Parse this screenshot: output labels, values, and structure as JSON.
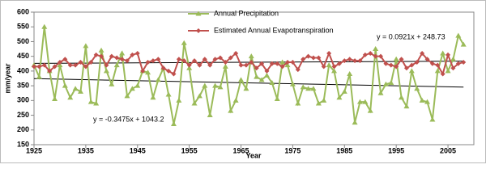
{
  "chart_data": {
    "type": "line",
    "x": [
      1925,
      1926,
      1927,
      1928,
      1929,
      1930,
      1931,
      1932,
      1933,
      1934,
      1935,
      1936,
      1937,
      1938,
      1939,
      1940,
      1941,
      1942,
      1943,
      1944,
      1945,
      1946,
      1947,
      1948,
      1949,
      1950,
      1951,
      1952,
      1953,
      1954,
      1955,
      1956,
      1957,
      1958,
      1959,
      1960,
      1961,
      1962,
      1963,
      1964,
      1965,
      1966,
      1967,
      1968,
      1969,
      1970,
      1971,
      1972,
      1973,
      1974,
      1975,
      1976,
      1977,
      1978,
      1979,
      1980,
      1981,
      1982,
      1983,
      1984,
      1985,
      1986,
      1987,
      1988,
      1989,
      1990,
      1991,
      1992,
      1993,
      1994,
      1995,
      1996,
      1997,
      1998,
      1999,
      2000,
      2001,
      2002,
      2003,
      2004,
      2005,
      2006,
      2007,
      2008
    ],
    "series": [
      {
        "name": "Annual Precipitation",
        "color": "#9bbb59",
        "marker": "triangle",
        "values": [
          420,
          380,
          550,
          400,
          305,
          420,
          350,
          310,
          340,
          330,
          485,
          295,
          290,
          470,
          400,
          355,
          420,
          460,
          315,
          340,
          350,
          400,
          395,
          310,
          370,
          410,
          320,
          220,
          300,
          495,
          410,
          290,
          315,
          350,
          250,
          350,
          345,
          415,
          265,
          300,
          370,
          340,
          450,
          380,
          370,
          385,
          360,
          305,
          430,
          420,
          355,
          290,
          345,
          340,
          340,
          290,
          300,
          420,
          400,
          310,
          330,
          390,
          225,
          295,
          295,
          265,
          475,
          325,
          355,
          360,
          440,
          310,
          280,
          400,
          340,
          300,
          295,
          235,
          400,
          460,
          400,
          440,
          520,
          490
        ]
      },
      {
        "name": "Estimated Annual Evapotranspiration",
        "color": "#c0504d",
        "marker": "diamond",
        "values": [
          415,
          415,
          420,
          400,
          415,
          430,
          440,
          420,
          420,
          430,
          415,
          430,
          455,
          450,
          420,
          450,
          445,
          440,
          435,
          455,
          460,
          400,
          430,
          435,
          440,
          410,
          400,
          390,
          440,
          435,
          420,
          435,
          420,
          440,
          420,
          440,
          445,
          430,
          445,
          460,
          420,
          420,
          430,
          410,
          425,
          400,
          425,
          425,
          415,
          430,
          430,
          405,
          440,
          450,
          445,
          445,
          415,
          460,
          415,
          425,
          435,
          440,
          435,
          435,
          455,
          460,
          450,
          450,
          425,
          420,
          415,
          440,
          410,
          420,
          430,
          460,
          440,
          425,
          420,
          390,
          455,
          410,
          425,
          430
        ]
      }
    ],
    "trendlines": [
      {
        "label": "y = 0.0921x + 248.73",
        "slope": 0.0921,
        "intercept": 248.73
      },
      {
        "label": "y = -0.3475x + 1043.2",
        "slope": -0.3475,
        "intercept": 1043.2
      }
    ],
    "x_label": "Year",
    "y_label": "mm/year",
    "xlim": [
      1925,
      2010
    ],
    "xticks": [
      1925,
      1935,
      1945,
      1955,
      1965,
      1975,
      1985,
      1995,
      2005
    ],
    "ylim": [
      150,
      600
    ],
    "yticks": [
      150,
      200,
      250,
      300,
      350,
      400,
      450,
      500,
      550,
      600
    ],
    "grid": false,
    "legend": "top"
  }
}
